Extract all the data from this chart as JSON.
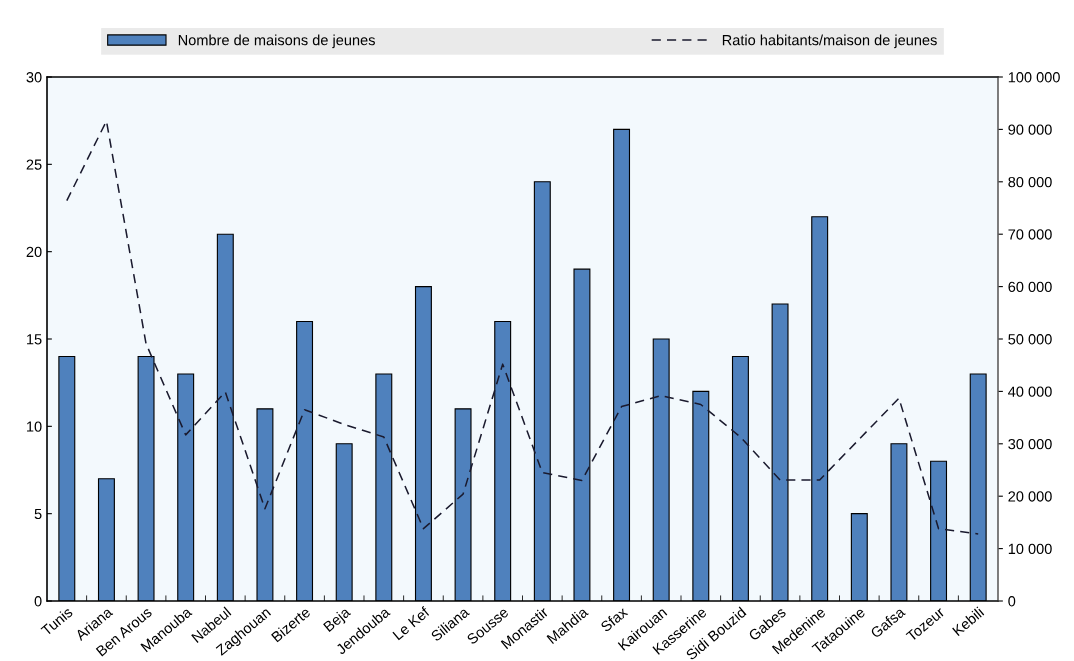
{
  "chart_data": {
    "type": "bar",
    "categories": [
      "Tunis",
      "Ariana",
      "Ben Arous",
      "Manouba",
      "Nabeul",
      "Zaghouan",
      "Bizerte",
      "Beja",
      "Jendouba",
      "Le Kef",
      "Siliana",
      "Sousse",
      "Monastir",
      "Mahdia",
      "Sfax",
      "Kairouan",
      "Kasserine",
      "Sidi Bouzid",
      "Gabes",
      "Medenine",
      "Tataouine",
      "Gafsa",
      "Tozeur",
      "Kebili"
    ],
    "series": [
      {
        "name": "Nombre de maisons de jeunes",
        "color": "#4f81bd",
        "values": [
          14,
          7,
          14,
          13,
          21,
          11,
          16,
          9,
          13,
          18,
          11,
          16,
          24,
          19,
          27,
          15,
          12,
          14,
          17,
          22,
          5,
          9,
          8,
          13
        ]
      },
      {
        "name": "Ratio habitants/maison de jeunes",
        "color": "#1a1a2e",
        "type": "line",
        "axis": "y2",
        "line_style": "dashed",
        "values": [
          76400,
          91600,
          49100,
          31700,
          39900,
          17600,
          36500,
          33700,
          31300,
          13800,
          20400,
          45200,
          24500,
          23000,
          37100,
          39200,
          37500,
          31300,
          23100,
          23100,
          30900,
          38700,
          13800,
          12800
        ]
      }
    ],
    "ylim": [
      0,
      30
    ],
    "yticks": [
      0,
      5,
      10,
      15,
      20,
      25,
      30
    ],
    "y2lim": [
      0,
      100000
    ],
    "y2ticks": [
      {
        "value": 0,
        "label": "0"
      },
      {
        "value": 10000,
        "label": "10 000"
      },
      {
        "value": 20000,
        "label": "20 000"
      },
      {
        "value": 30000,
        "label": "30 000"
      },
      {
        "value": 40000,
        "label": "40 000"
      },
      {
        "value": 50000,
        "label": "50 000"
      },
      {
        "value": 60000,
        "label": "60 000"
      },
      {
        "value": 70000,
        "label": "70 000"
      },
      {
        "value": 80000,
        "label": "80 000"
      },
      {
        "value": 90000,
        "label": "90 000"
      },
      {
        "value": 100000,
        "label": "100 000"
      }
    ],
    "legend": "top",
    "grid": false,
    "marker": "none"
  }
}
